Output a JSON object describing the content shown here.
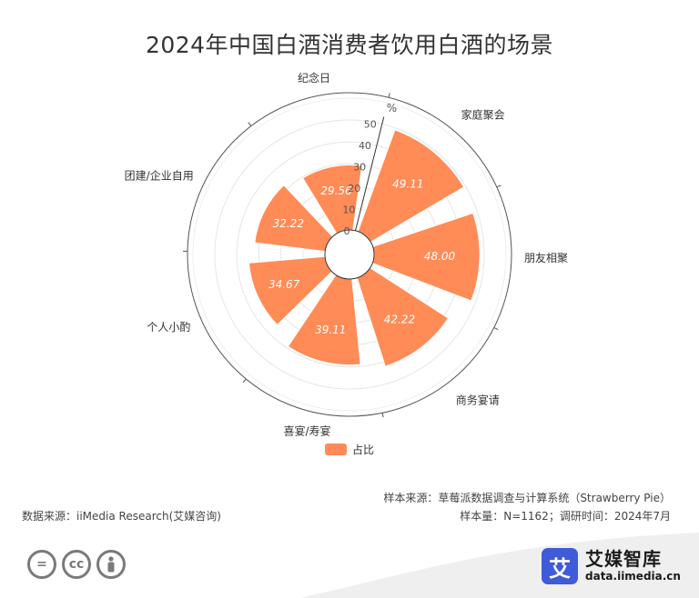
{
  "title": "2024年中国白酒消费者饮用白酒的场景",
  "legend_label": "占比",
  "source_left": "数据来源：iiMedia Research(艾媒咨询)",
  "source_right_1": "样本来源：草莓派数据调查与计算系统（Strawberry Pie）",
  "source_right_2": "样本量：N=1162；调研时间：2024年7月",
  "logo": {
    "cn": "艾媒智库",
    "url": "data.iimedia.cn",
    "mark": "艾"
  },
  "colors": {
    "bar": "#ff8b56",
    "axis": "#555555",
    "grid": "#e6e6e6"
  },
  "chart_data": {
    "type": "bar",
    "subtype": "polar",
    "categories": [
      "家庭聚会",
      "朋友相聚",
      "商务宴请",
      "喜宴/寿宴",
      "个人小酌",
      "团建/企业自用",
      "纪念日"
    ],
    "values": [
      49.11,
      48.0,
      42.22,
      39.11,
      34.67,
      32.22,
      29.56
    ],
    "value_labels": [
      "49.11",
      "48.00",
      "42.22",
      "39.11",
      "34.67",
      "32.22",
      "29.56"
    ],
    "radius_ticks": [
      "0",
      "10",
      "20",
      "30",
      "40",
      "50"
    ],
    "radius_unit": "%",
    "rlim": [
      0,
      50
    ],
    "series": [
      {
        "name": "占比",
        "values": [
          49.11,
          48.0,
          42.22,
          39.11,
          34.67,
          32.22,
          29.56
        ]
      }
    ],
    "legend": "bottom-center"
  }
}
